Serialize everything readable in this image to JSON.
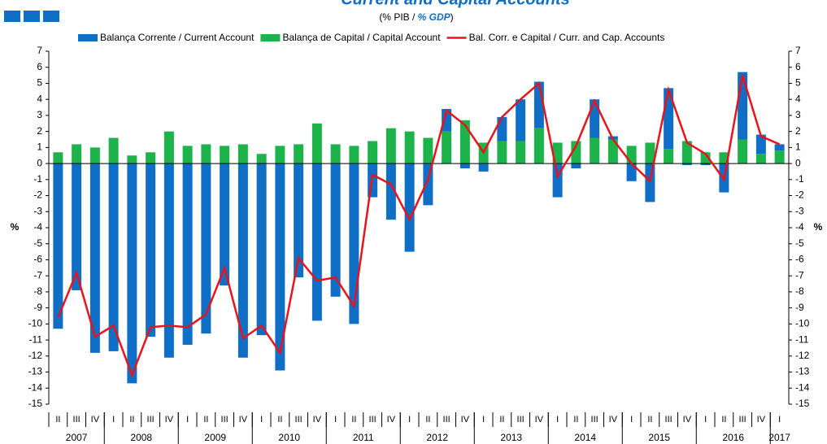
{
  "chart_data": {
    "type": "bar_line",
    "title": "Current and Capital Accounts",
    "subtitle": [
      "(% PIB / ",
      "% GDP",
      ")"
    ],
    "y_label": "%",
    "categories": [
      "II",
      "III",
      "IV",
      "I",
      "II",
      "III",
      "IV",
      "I",
      "II",
      "III",
      "IV",
      "I",
      "II",
      "III",
      "IV",
      "I",
      "II",
      "III",
      "IV",
      "I",
      "II",
      "III",
      "IV",
      "I",
      "II",
      "III",
      "IV",
      "I",
      "II",
      "III",
      "IV",
      "I",
      "II",
      "III",
      "IV",
      "I",
      "II",
      "III",
      "IV",
      "I"
    ],
    "years": [
      "2007",
      "2008",
      "2009",
      "2010",
      "2011",
      "2012",
      "2013",
      "2014",
      "2015",
      "2016",
      "2017"
    ],
    "series": [
      {
        "name": "Balança Corrente / Current Account",
        "kind": "bar",
        "color": "#0f6ec6",
        "values": [
          -10.3,
          -7.9,
          -11.8,
          -11.7,
          -13.7,
          -10.8,
          -12.1,
          -11.3,
          -10.6,
          -7.6,
          -12.1,
          -10.7,
          -12.9,
          -7.1,
          -9.8,
          -8.3,
          -10.0,
          -2.1,
          -3.5,
          -5.5,
          -2.6,
          1.4,
          -0.3,
          -0.5,
          1.5,
          2.6,
          2.9,
          -2.1,
          -0.3,
          2.4,
          0.2,
          -1.1,
          -2.4,
          3.8,
          -0.1,
          -0.1,
          -1.8,
          4.2,
          1.2,
          0.4
        ]
      },
      {
        "name": "Balança de Capital / Capital Account",
        "kind": "bar",
        "color": "#1cb34a",
        "values": [
          0.7,
          1.2,
          1.0,
          1.6,
          0.5,
          0.7,
          2.0,
          1.1,
          1.2,
          1.1,
          1.2,
          0.6,
          1.1,
          1.2,
          2.5,
          1.2,
          1.1,
          1.4,
          2.2,
          2.0,
          1.6,
          2.0,
          2.7,
          1.3,
          1.4,
          1.4,
          2.2,
          1.3,
          1.4,
          1.6,
          1.5,
          1.1,
          1.3,
          0.9,
          1.4,
          0.7,
          0.7,
          1.5,
          0.6,
          0.8
        ]
      },
      {
        "name": "Bal. Corr. e Capital / Curr. and Cap. Accounts",
        "kind": "line",
        "color": "#e8141c",
        "values": [
          -9.6,
          -6.8,
          -10.8,
          -10.1,
          -13.2,
          -10.2,
          -10.1,
          -10.2,
          -9.4,
          -6.5,
          -10.9,
          -10.1,
          -11.8,
          -5.9,
          -7.3,
          -7.1,
          -8.9,
          -0.7,
          -1.3,
          -3.5,
          -1.0,
          3.3,
          2.4,
          0.7,
          2.9,
          4.0,
          5.0,
          -0.8,
          1.1,
          3.9,
          1.5,
          0.0,
          -1.1,
          4.6,
          1.3,
          0.6,
          -1.0,
          5.5,
          1.7,
          1.2
        ]
      }
    ],
    "ylim": [
      -15,
      7
    ],
    "yticks": [
      -15,
      -14,
      -13,
      -12,
      -11,
      -10,
      -9,
      -8,
      -7,
      -6,
      -5,
      -4,
      -3,
      -2,
      -1,
      0,
      1,
      2,
      3,
      4,
      5,
      6,
      7
    ]
  }
}
